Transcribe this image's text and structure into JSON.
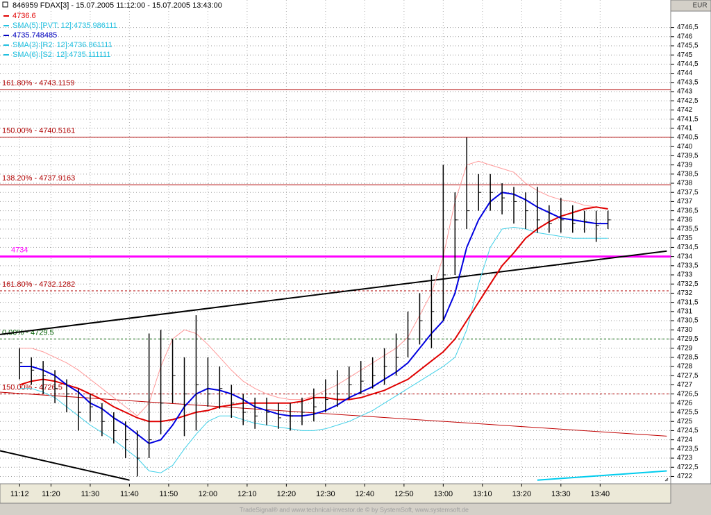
{
  "header": {
    "title": "846959  FDAX[3] - 15.07.2005 11:12:00 - 15.07.2005 13:43:00",
    "currency": "EUR"
  },
  "footer": "TradeSignal® and www.technical-investor.de © by  SystemSoft, www.systemsoft.de",
  "chart_data": {
    "type": "ohlc",
    "xlim": [
      "11:07",
      "13:58"
    ],
    "ylim": [
      4721.6,
      4748
    ],
    "grid": true,
    "xticks": [
      "11:12",
      "11:20",
      "11:30",
      "11:40",
      "11:50",
      "12:00",
      "12:10",
      "12:20",
      "12:30",
      "12:40",
      "12:50",
      "13:00",
      "13:10",
      "13:20",
      "13:30",
      "13:40"
    ],
    "yticks": [
      4722,
      {
        "value": 4722.5,
        "label": "4722,5"
      },
      4723,
      {
        "value": 4723.5,
        "label": "4723,5"
      },
      4724,
      {
        "value": 4724.5,
        "label": "4724,5"
      },
      4725,
      {
        "value": 4725.5,
        "label": "4725,5"
      },
      4726,
      {
        "value": 4726.5,
        "label": "4726,5"
      },
      4727,
      {
        "value": 4727.5,
        "label": "4727,5"
      },
      4728,
      {
        "value": 4728.5,
        "label": "4728,5"
      },
      4729,
      {
        "value": 4729.5,
        "label": "4729,5"
      },
      4730,
      {
        "value": 4730.5,
        "label": "4730,5"
      },
      4731,
      {
        "value": 4731.5,
        "label": "4731,5"
      },
      4732,
      {
        "value": 4732.5,
        "label": "4732,5"
      },
      4733,
      {
        "value": 4733.5,
        "label": "4733,5"
      },
      4734,
      {
        "value": 4734.5,
        "label": "4734,5"
      },
      4735,
      {
        "value": 4735.5,
        "label": "4735,5"
      },
      4736,
      {
        "value": 4736.5,
        "label": "4736,5"
      },
      4737,
      {
        "value": 4737.5,
        "label": "4737,5"
      },
      4738,
      {
        "value": 4738.5,
        "label": "4738,5"
      },
      4739,
      {
        "value": 4739.5,
        "label": "4739,5"
      },
      4740,
      {
        "value": 4740.5,
        "label": "4740,5"
      },
      4741,
      {
        "value": 4741.5,
        "label": "4741,5"
      },
      4742,
      {
        "value": 4742.5,
        "label": "4742,5"
      },
      4743,
      {
        "value": 4743.5,
        "label": "4743,5"
      },
      4744,
      {
        "value": 4744.5,
        "label": "4744,5"
      },
      4745,
      {
        "value": 4745.5,
        "label": "4745,5"
      },
      4746,
      {
        "value": 4746.5,
        "label": "4746,5"
      }
    ],
    "x": [
      "11:12",
      "11:15",
      "11:18",
      "11:21",
      "11:24",
      "11:27",
      "11:30",
      "11:33",
      "11:36",
      "11:39",
      "11:42",
      "11:45",
      "11:48",
      "11:51",
      "11:54",
      "11:57",
      "12:00",
      "12:03",
      "12:06",
      "12:09",
      "12:12",
      "12:15",
      "12:18",
      "12:21",
      "12:24",
      "12:27",
      "12:30",
      "12:33",
      "12:36",
      "12:39",
      "12:42",
      "12:45",
      "12:48",
      "12:51",
      "12:54",
      "12:57",
      "13:00",
      "13:03",
      "13:06",
      "13:09",
      "13:12",
      "13:15",
      "13:18",
      "13:21",
      "13:24",
      "13:27",
      "13:30",
      "13:33",
      "13:36",
      "13:39",
      "13:42"
    ],
    "high": [
      4729,
      4728.5,
      4728.3,
      4727.8,
      4727.3,
      4726.8,
      4726.5,
      4726,
      4725.5,
      4725,
      4724.5,
      4729.8,
      4730,
      4729.5,
      4728.5,
      4730.8,
      4728.5,
      4728,
      4727,
      4726.5,
      4726.3,
      4726.3,
      4726,
      4726,
      4726.3,
      4726.8,
      4727.3,
      4727.8,
      4728,
      4728.3,
      4728.5,
      4729,
      4729.8,
      4731,
      4732,
      4733,
      4739,
      4737.5,
      4740.5,
      4738.5,
      4738.5,
      4738,
      4737.8,
      4737.5,
      4737.8,
      4736.8,
      4737.2,
      4736.8,
      4736.5,
      4736.5,
      4736.5
    ],
    "low": [
      4727.3,
      4727,
      4726.5,
      4726,
      4725.5,
      4724.5,
      4725,
      4724.2,
      4723.8,
      4723,
      4722,
      4723,
      4724.3,
      4726,
      4724.2,
      4724.5,
      4725.8,
      4725.7,
      4725.2,
      4724.8,
      4724.6,
      4724.8,
      4724.6,
      4724.5,
      4724.8,
      4725,
      4725.5,
      4725.8,
      4726.2,
      4726.5,
      4726.8,
      4727,
      4727.5,
      4728.5,
      4729.2,
      4729,
      4730.5,
      4733,
      4735.5,
      4736.5,
      4736.5,
      4736.3,
      4735.8,
      4735.5,
      4735.3,
      4735.3,
      4735.3,
      4735.3,
      4735.3,
      4734.8,
      4735.5
    ],
    "close": [
      4728.2,
      4727.8,
      4727.5,
      4726.8,
      4726.5,
      4725.5,
      4725.8,
      4725,
      4724.5,
      4724,
      4723,
      4724,
      4726,
      4727.5,
      4726.5,
      4727,
      4726.5,
      4726.8,
      4726,
      4725.5,
      4725.3,
      4725.5,
      4725.2,
      4725.3,
      4725.5,
      4725.8,
      4726.2,
      4726.5,
      4727,
      4727.2,
      4727.5,
      4728,
      4728.5,
      4729.5,
      4730.5,
      4731,
      4733,
      4736,
      4736.5,
      4737.5,
      4737.5,
      4737.2,
      4737,
      4736.5,
      4736,
      4735.8,
      4736,
      4735.8,
      4735.9,
      4735.7,
      4736
    ],
    "series": [
      {
        "color": "#ff9999",
        "values": [
          4729,
          4729,
          4728.8,
          4728.5,
          4728.2,
          4727.8,
          4727.3,
          4726.8,
          4726.3,
          4725.8,
          4725.3,
          4726,
          4728,
          4729.5,
          4730,
          4729.8,
          4729.2,
          4728.5,
          4727.8,
          4727.2,
          4726.8,
          4726.5,
          4726.3,
          4726.2,
          4726.2,
          4726.4,
          4726.7,
          4727,
          4727.4,
          4727.8,
          4728.2,
          4728.6,
          4729,
          4729.6,
          4730.8,
          4732,
          4734,
          4737,
          4739,
          4739.2,
          4739,
          4738.8,
          4738.6,
          4738,
          4737.6,
          4737.3,
          4737.1,
          4737,
          4736.8,
          4736.7,
          4736.6
        ]
      },
      {
        "color": "#40d0e8",
        "values": [
          4726.8,
          4726.8,
          4726.6,
          4726.3,
          4725.8,
          4725.3,
          4724.8,
          4724.4,
          4724,
          4723.5,
          4723,
          4722.3,
          4722.2,
          4722.6,
          4723.5,
          4724.3,
          4725,
          4725.3,
          4725.3,
          4725.1,
          4724.9,
          4724.8,
          4724.7,
          4724.6,
          4724.5,
          4724.5,
          4724.6,
          4724.8,
          4725,
          4725.3,
          4725.6,
          4726,
          4726.4,
          4726.8,
          4727.2,
          4727.6,
          4728,
          4728.5,
          4730,
          4732.5,
          4734.5,
          4735.5,
          4735.6,
          4735.5,
          4735.3,
          4735.2,
          4735.1,
          4735,
          4735,
          4735,
          4735
        ]
      },
      {
        "color": "#e00000",
        "values": [
          4727,
          4727.2,
          4727.3,
          4727.2,
          4727,
          4726.8,
          4726.5,
          4726.2,
          4725.8,
          4725.5,
          4725.2,
          4725,
          4725,
          4725.1,
          4725.3,
          4725.5,
          4725.6,
          4725.8,
          4725.9,
          4726,
          4726,
          4726,
          4726,
          4726,
          4726.1,
          4726.3,
          4726.3,
          4726.2,
          4726.2,
          4726.3,
          4726.5,
          4726.7,
          4727,
          4727.3,
          4727.8,
          4728.3,
          4728.8,
          4729.5,
          4730.5,
          4731.5,
          4732.5,
          4733.5,
          4734.2,
          4735,
          4735.5,
          4735.9,
          4736.2,
          4736.4,
          4736.6,
          4736.7,
          4736.6
        ]
      },
      {
        "color": "#0000e0",
        "values": [
          4728,
          4728,
          4727.8,
          4727.5,
          4727,
          4726.6,
          4726,
          4725.7,
          4725.2,
          4724.8,
          4724.3,
          4723.8,
          4724,
          4724.8,
          4725.8,
          4726.5,
          4726.8,
          4726.7,
          4726.5,
          4726.2,
          4725.8,
          4725.6,
          4725.4,
          4725.3,
          4725.3,
          4725.4,
          4725.6,
          4725.9,
          4726.3,
          4726.6,
          4726.9,
          4727.3,
          4727.7,
          4728.2,
          4729,
          4729.8,
          4730.5,
          4732,
          4734.5,
          4736,
          4737,
          4737.5,
          4737.4,
          4737.1,
          4736.7,
          4736.4,
          4736.1,
          4736,
          4735.9,
          4735.8,
          4735.8
        ]
      }
    ],
    "legend": [
      {
        "text": "4736.6",
        "color": "#e00000"
      },
      {
        "text": "SMA(5):[PVT: 12]:4735.986111",
        "color": "#20c0e0"
      },
      {
        "text": "4735.748485",
        "color": "#0000c0"
      },
      {
        "text": "SMA(3):[R2: 12]:4736.861111",
        "color": "#20c0e0"
      },
      {
        "text": "SMA(6):[S2: 12]:4735.111111",
        "color": "#20c0e0"
      }
    ],
    "levels": [
      {
        "label": "161.80% - 4743.1159",
        "value": 4743.1159,
        "color": "#b00000",
        "dash": false
      },
      {
        "label": "150.00% - 4740.5161",
        "value": 4740.5161,
        "color": "#b00000",
        "dash": false
      },
      {
        "label": "138.20% - 4737.9163",
        "value": 4737.9163,
        "color": "#b00000",
        "dash": false
      },
      {
        "value": 4734,
        "color": "#ff00ff",
        "width": 3,
        "dash": false
      },
      {
        "label": "161.80% - 4732.1282",
        "value": 4732.1282,
        "color": "#b00000",
        "dash": true
      },
      {
        "label": "0.00% - 4729.5",
        "value": 4729.5,
        "color": "#006000",
        "dash": true
      },
      {
        "label": "150.00% - 4726.5",
        "value": 4726.5,
        "color": "#b00000",
        "dash": true
      }
    ],
    "trendlines": [
      {
        "x": [
          "11:07",
          "13:57"
        ],
        "values": [
          4729.75,
          4734.3
        ],
        "color": "#000000",
        "width": 2
      },
      {
        "x": [
          "11:07",
          "11:40"
        ],
        "values": [
          4723.4,
          4721.8
        ],
        "color": "#000000",
        "width": 2
      },
      {
        "x": [
          "11:07",
          "13:57"
        ],
        "values": [
          4726.6,
          4724.2
        ],
        "color": "#c00000",
        "width": 1
      },
      {
        "x": [
          "13:24",
          "13:57"
        ],
        "values": [
          4721.8,
          4722.3
        ],
        "color": "#00ccee",
        "width": 2
      }
    ]
  }
}
